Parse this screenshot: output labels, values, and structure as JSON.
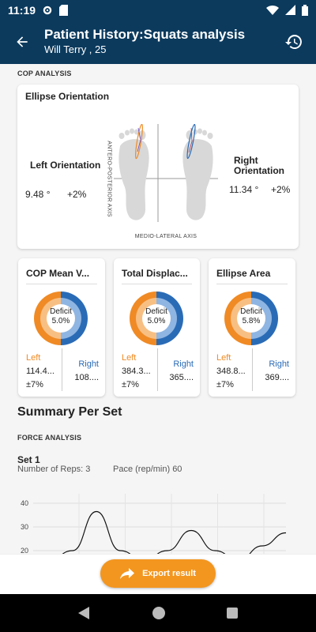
{
  "status_bar": {
    "time": "11:19"
  },
  "app_bar": {
    "title": "Patient History:Squats analysis",
    "subtitle": "Will Terry , 25"
  },
  "cop_analysis": {
    "section_label": "COP ANALYSIS",
    "ellipse": {
      "title": "Ellipse Orientation",
      "left": {
        "label": "Left Orientation",
        "value": "9.48 °",
        "delta": "+2%"
      },
      "right": {
        "label": "Right Orientation",
        "value": "11.34 °",
        "delta": "+2%"
      },
      "axis_vertical": "ANTERO-POSTERIOR AXIS",
      "axis_horizontal": "MEDIO-LATERAL AXIS"
    },
    "metrics": [
      {
        "title": "COP Mean V...",
        "deficit_label": "Deficit",
        "deficit": "5.0%",
        "deficit_value": 5.0,
        "left_label": "Left",
        "left_value": "114.4...",
        "pm": "±7%",
        "right_label": "Right",
        "right_value": "108...."
      },
      {
        "title": "Total Displac...",
        "deficit_label": "Deficit",
        "deficit": "5.0%",
        "deficit_value": 5.0,
        "left_label": "Left",
        "left_value": "384.3...",
        "pm": "±7%",
        "right_label": "Right",
        "right_value": "365...."
      },
      {
        "title": "Ellipse Area",
        "deficit_label": "Deficit",
        "deficit": "5.8%",
        "deficit_value": 5.8,
        "left_label": "Left",
        "left_value": "348.8...",
        "pm": "±7%",
        "right_label": "Right",
        "right_value": "369...."
      }
    ]
  },
  "summary": {
    "title": "Summary Per Set",
    "force_label": "FORCE ANALYSIS",
    "set": {
      "title": "Set 1",
      "reps_label": "Number of Reps: 3",
      "pace_label": "Pace (rep/min) 60"
    }
  },
  "colors": {
    "primary": "#0b3a5d",
    "left": "#f08a24",
    "right": "#2a6bb6",
    "accent": "#f3961f"
  },
  "chart_data": {
    "type": "line",
    "y_ticks": [
      "40",
      "30",
      "20"
    ],
    "ylim": [
      20,
      40
    ],
    "x": [
      0,
      1,
      2,
      3,
      4,
      5,
      6,
      7,
      8,
      9,
      10
    ],
    "values": [
      16,
      20,
      36.5,
      20,
      16,
      20,
      28.5,
      20,
      16,
      22,
      27.5
    ],
    "grid": true
  },
  "export": {
    "label": "Export result"
  }
}
